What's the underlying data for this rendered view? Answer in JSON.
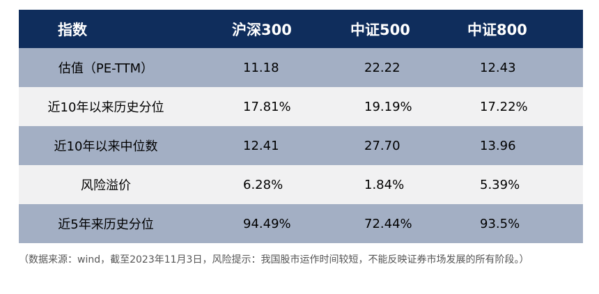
{
  "table": {
    "headers": [
      "指数",
      "沪深300",
      "中证500",
      "中证800"
    ],
    "rows": [
      [
        "估值（PE-TTM）",
        "11.18",
        "22.22",
        "12.43"
      ],
      [
        "近10年以来历史分位",
        "17.81%",
        "19.19%",
        "17.22%"
      ],
      [
        "近10年以来中位数",
        "12.41",
        "27.70",
        "13.96"
      ],
      [
        "风险溢价",
        "6.28%",
        "1.84%",
        "5.39%"
      ],
      [
        "近5年来历史分位",
        "94.49%",
        "72.44%",
        "93.5%"
      ]
    ]
  },
  "footnote": "（数据来源：wind，截至2023年11月3日，风险提示：我国股市运作时间较短，不能反映证券市场发展的所有阶段。）",
  "colors": {
    "header_bg": "#0f2d5c",
    "dark_row_bg": "#a3afc4",
    "light_row_bg": "#f1f1f2"
  }
}
